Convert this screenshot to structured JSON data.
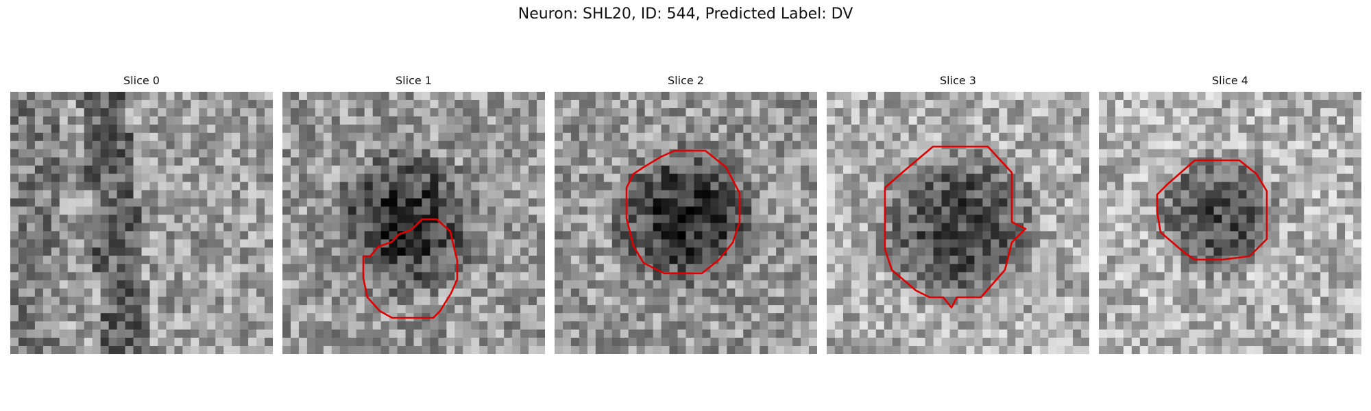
{
  "figure": {
    "title": "Neuron: SHL20, ID: 544, Predicted Label: DV",
    "outline_color": "#e00000",
    "colormap": "grayscale",
    "panels": [
      {
        "title": "Slice 0",
        "has_outline": false
      },
      {
        "title": "Slice 1",
        "has_outline": true
      },
      {
        "title": "Slice 2",
        "has_outline": true
      },
      {
        "title": "Slice 3",
        "has_outline": true
      },
      {
        "title": "Slice 4",
        "has_outline": true
      }
    ]
  }
}
